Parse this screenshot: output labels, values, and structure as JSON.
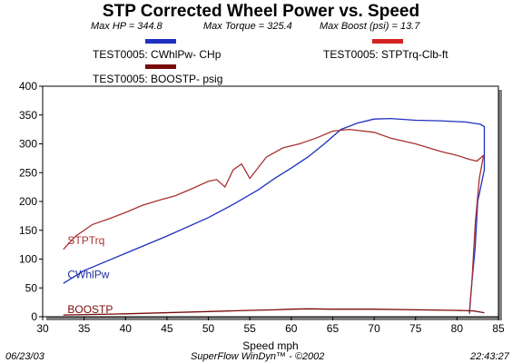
{
  "header": {
    "title": "STP Corrected Wheel Power vs. Speed",
    "max_hp": "Max HP = 344.8",
    "max_torque": "Max Torque = 325.4",
    "max_boost": "Max Boost (psi) = 13.7"
  },
  "legend": {
    "items": [
      {
        "label": "TEST0005: CWhlPw- CHp",
        "color": "#1f2fbf"
      },
      {
        "label": "TEST0005: STPTrq-Clb-ft",
        "color": "#d22222"
      },
      {
        "label": "TEST0005: BOOSTP- psig",
        "color": "#7a0a0a"
      }
    ]
  },
  "footer": {
    "date": "06/23/03",
    "software": "SuperFlow WinDyn™ - ©2002",
    "time": "22:43:27"
  },
  "chart_data": {
    "type": "line",
    "title": "STP Corrected Wheel Power vs. Speed",
    "xlabel": "Speed  mph",
    "ylabel": "",
    "xlim": [
      30,
      85
    ],
    "ylim": [
      0,
      400
    ],
    "x_ticks": [
      30,
      35,
      40,
      45,
      50,
      55,
      60,
      65,
      70,
      75,
      80,
      85
    ],
    "y_ticks": [
      0,
      50,
      100,
      150,
      200,
      250,
      300,
      350,
      400
    ],
    "grid": false,
    "series": [
      {
        "name": "CWhlPw",
        "color": "#1f2fbf",
        "label_color": "#1f2f9f",
        "label_at": [
          33,
          67
        ],
        "points": [
          [
            32.5,
            58
          ],
          [
            35,
            80
          ],
          [
            40,
            110
          ],
          [
            45,
            140
          ],
          [
            50,
            172
          ],
          [
            53,
            195
          ],
          [
            56,
            220
          ],
          [
            58,
            240
          ],
          [
            60,
            258
          ],
          [
            62,
            277
          ],
          [
            64,
            300
          ],
          [
            66,
            325
          ],
          [
            68,
            336
          ],
          [
            70,
            343
          ],
          [
            72,
            344
          ],
          [
            75,
            341
          ],
          [
            78,
            340
          ],
          [
            81,
            338
          ],
          [
            82.8,
            334
          ],
          [
            83.3,
            330
          ],
          [
            83.3,
            255
          ],
          [
            82.5,
            200
          ],
          [
            82.2,
            120
          ],
          [
            81.8,
            60
          ],
          [
            81.5,
            5
          ]
        ]
      },
      {
        "name": "STPTrq",
        "color": "#a83232",
        "label_color": "#a83232",
        "label_at": [
          33,
          126
        ],
        "points": [
          [
            32.5,
            117
          ],
          [
            34,
            140
          ],
          [
            36,
            160
          ],
          [
            38,
            170
          ],
          [
            40,
            181
          ],
          [
            42,
            193
          ],
          [
            44,
            202
          ],
          [
            46,
            210
          ],
          [
            48,
            222
          ],
          [
            50,
            235
          ],
          [
            51,
            238
          ],
          [
            52,
            225
          ],
          [
            53,
            255
          ],
          [
            54,
            265
          ],
          [
            55,
            240
          ],
          [
            57,
            277
          ],
          [
            59,
            293
          ],
          [
            61,
            300
          ],
          [
            63,
            310
          ],
          [
            65,
            322
          ],
          [
            67,
            325
          ],
          [
            70,
            320
          ],
          [
            72,
            310
          ],
          [
            75,
            300
          ],
          [
            78,
            287
          ],
          [
            80,
            280
          ],
          [
            81.5,
            273
          ],
          [
            82.4,
            270
          ],
          [
            83.2,
            280
          ],
          [
            82.7,
            240
          ],
          [
            82.2,
            160
          ],
          [
            81.8,
            60
          ],
          [
            81.5,
            10
          ]
        ]
      },
      {
        "name": "BOOSTP",
        "color": "#7a0a0a",
        "label_color": "#7a0a0a",
        "label_at": [
          33,
          6
        ],
        "points": [
          [
            32.5,
            3
          ],
          [
            40,
            5
          ],
          [
            50,
            9
          ],
          [
            55,
            11
          ],
          [
            58,
            12
          ],
          [
            60,
            13
          ],
          [
            62,
            13.7
          ],
          [
            65,
            13
          ],
          [
            70,
            13
          ],
          [
            75,
            12
          ],
          [
            80,
            11
          ],
          [
            82,
            10
          ],
          [
            83.3,
            7
          ]
        ]
      }
    ]
  }
}
